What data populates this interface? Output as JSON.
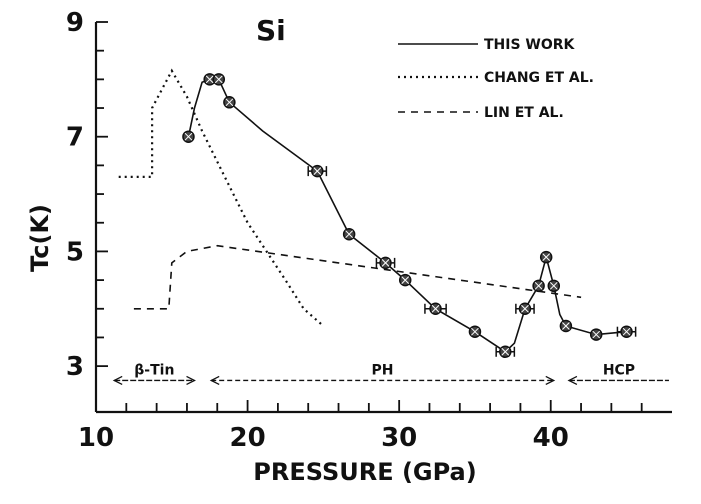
{
  "chart_data": {
    "type": "line",
    "title": "Si",
    "xlabel": "PRESSURE (GPa)",
    "ylabel": "Tc(K)",
    "xlim": [
      10,
      48
    ],
    "ylim": [
      2.2,
      9
    ],
    "x_ticks": [
      10,
      20,
      30,
      40
    ],
    "y_ticks": [
      3,
      5,
      7,
      9
    ],
    "legend_position": "top-right",
    "series": [
      {
        "name": "THIS WORK",
        "style": "solid",
        "markers": true,
        "points": [
          {
            "x": 16.1,
            "y": 7.0
          },
          {
            "x": 17.5,
            "y": 8.0
          },
          {
            "x": 18.1,
            "y": 8.0
          },
          {
            "x": 18.8,
            "y": 7.6
          },
          {
            "x": 24.6,
            "y": 6.4,
            "xerr": 0.6
          },
          {
            "x": 26.7,
            "y": 5.3
          },
          {
            "x": 29.1,
            "y": 4.8,
            "xerr": 0.6
          },
          {
            "x": 30.4,
            "y": 4.5
          },
          {
            "x": 32.4,
            "y": 4.0,
            "xerr": 0.7
          },
          {
            "x": 35.0,
            "y": 3.6
          },
          {
            "x": 37.0,
            "y": 3.25,
            "xerr": 0.6
          },
          {
            "x": 38.3,
            "y": 4.0,
            "xerr": 0.6
          },
          {
            "x": 39.2,
            "y": 4.4
          },
          {
            "x": 39.7,
            "y": 4.9
          },
          {
            "x": 40.2,
            "y": 4.4
          },
          {
            "x": 41.0,
            "y": 3.7
          },
          {
            "x": 43.0,
            "y": 3.55
          },
          {
            "x": 45.0,
            "y": 3.6,
            "xerr": 0.6
          }
        ],
        "curve": [
          {
            "x": 16.1,
            "y": 7.0
          },
          {
            "x": 16.5,
            "y": 7.5
          },
          {
            "x": 17.0,
            "y": 7.95
          },
          {
            "x": 17.5,
            "y": 8.0
          },
          {
            "x": 18.1,
            "y": 8.0
          },
          {
            "x": 18.8,
            "y": 7.6
          },
          {
            "x": 21.0,
            "y": 7.1
          },
          {
            "x": 24.6,
            "y": 6.4
          },
          {
            "x": 26.7,
            "y": 5.3
          },
          {
            "x": 29.1,
            "y": 4.8
          },
          {
            "x": 30.4,
            "y": 4.5
          },
          {
            "x": 32.4,
            "y": 4.0
          },
          {
            "x": 35.0,
            "y": 3.6
          },
          {
            "x": 37.0,
            "y": 3.25
          },
          {
            "x": 37.6,
            "y": 3.4
          },
          {
            "x": 38.3,
            "y": 4.0
          },
          {
            "x": 39.2,
            "y": 4.4
          },
          {
            "x": 39.7,
            "y": 4.9
          },
          {
            "x": 40.2,
            "y": 4.4
          },
          {
            "x": 40.6,
            "y": 3.9
          },
          {
            "x": 41.0,
            "y": 3.7
          },
          {
            "x": 43.0,
            "y": 3.55
          },
          {
            "x": 45.0,
            "y": 3.6
          }
        ]
      },
      {
        "name": "CHANG ET AL.",
        "style": "dotted",
        "markers": false,
        "curve": [
          {
            "x": 11.5,
            "y": 6.3
          },
          {
            "x": 13.7,
            "y": 6.3
          },
          {
            "x": 13.7,
            "y": 7.5
          },
          {
            "x": 14.5,
            "y": 7.9
          },
          {
            "x": 15.0,
            "y": 8.15
          },
          {
            "x": 16.0,
            "y": 7.7
          },
          {
            "x": 17.0,
            "y": 7.1
          },
          {
            "x": 18.5,
            "y": 6.3
          },
          {
            "x": 20.0,
            "y": 5.5
          },
          {
            "x": 21.5,
            "y": 4.9
          },
          {
            "x": 22.5,
            "y": 4.5
          },
          {
            "x": 23.7,
            "y": 4.0
          },
          {
            "x": 25.0,
            "y": 3.7
          }
        ]
      },
      {
        "name": "LIN ET AL.",
        "style": "dashed",
        "markers": false,
        "curve": [
          {
            "x": 12.5,
            "y": 4.0
          },
          {
            "x": 14.8,
            "y": 4.0
          },
          {
            "x": 15.0,
            "y": 4.8
          },
          {
            "x": 16.0,
            "y": 5.0
          },
          {
            "x": 18.0,
            "y": 5.1
          },
          {
            "x": 22.0,
            "y": 4.95
          },
          {
            "x": 26.0,
            "y": 4.8
          },
          {
            "x": 30.0,
            "y": 4.65
          },
          {
            "x": 34.0,
            "y": 4.5
          },
          {
            "x": 38.0,
            "y": 4.35
          },
          {
            "x": 42.0,
            "y": 4.2
          }
        ]
      }
    ],
    "regions": [
      {
        "label": "β-Tin",
        "from": 11.2,
        "to": 16.5
      },
      {
        "label": "PH",
        "from": 17.6,
        "to": 40.2
      },
      {
        "label": "HCP",
        "from": 41.2,
        "to": 47.8
      }
    ],
    "region_y": 2.75
  }
}
